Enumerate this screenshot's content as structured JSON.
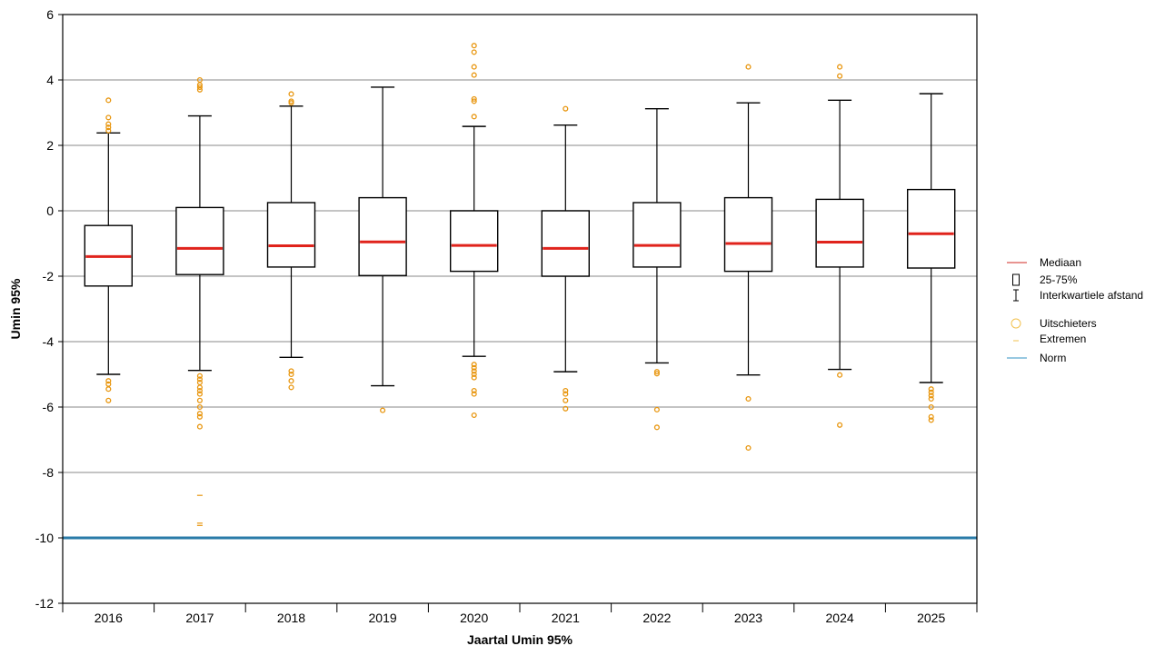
{
  "chart_data": {
    "type": "boxplot",
    "xlabel": "Jaartal Umin 95%",
    "ylabel": "Umin 95%",
    "ylim": [
      -12,
      6
    ],
    "yticks": [
      -12,
      -10,
      -8,
      -6,
      -4,
      -2,
      0,
      2,
      4,
      6
    ],
    "grid": "horizontal",
    "legend_position": "right",
    "categories": [
      "2016",
      "2017",
      "2018",
      "2019",
      "2020",
      "2021",
      "2022",
      "2023",
      "2024",
      "2025"
    ],
    "boxes": [
      {
        "category": "2016",
        "whisker_low": -5.0,
        "q1": -2.3,
        "median": -1.4,
        "q3": -0.45,
        "whisker_high": 2.38,
        "outliers": [
          2.45,
          2.55,
          2.65,
          2.85,
          3.38,
          -5.2,
          -5.3,
          -5.45,
          -5.8
        ],
        "extremes": []
      },
      {
        "category": "2017",
        "whisker_low": -4.88,
        "q1": -1.95,
        "median": -1.15,
        "q3": 0.1,
        "whisker_high": 2.9,
        "outliers": [
          3.7,
          3.78,
          3.85,
          4.0,
          -5.05,
          -5.15,
          -5.25,
          -5.4,
          -5.5,
          -5.6,
          -5.8,
          -6.0,
          -6.2,
          -6.3,
          -6.6
        ],
        "extremes": [
          -8.7,
          -9.55,
          -9.62
        ]
      },
      {
        "category": "2018",
        "whisker_low": -4.48,
        "q1": -1.72,
        "median": -1.07,
        "q3": 0.25,
        "whisker_high": 3.2,
        "outliers": [
          3.3,
          3.35,
          3.57,
          -4.9,
          -5.0,
          -5.2,
          -5.4
        ],
        "extremes": []
      },
      {
        "category": "2019",
        "whisker_low": -5.35,
        "q1": -1.98,
        "median": -0.95,
        "q3": 0.4,
        "whisker_high": 3.78,
        "outliers": [
          -6.1
        ],
        "extremes": []
      },
      {
        "category": "2020",
        "whisker_low": -4.45,
        "q1": -1.85,
        "median": -1.06,
        "q3": 0.0,
        "whisker_high": 2.58,
        "outliers": [
          2.88,
          3.35,
          3.42,
          4.15,
          4.4,
          4.85,
          5.05,
          -4.7,
          -4.8,
          -4.9,
          -5.0,
          -5.1,
          -5.5,
          -5.6,
          -6.25
        ],
        "extremes": []
      },
      {
        "category": "2021",
        "whisker_low": -4.92,
        "q1": -2.0,
        "median": -1.15,
        "q3": 0.0,
        "whisker_high": 2.62,
        "outliers": [
          3.12,
          -5.5,
          -5.6,
          -5.8,
          -6.05
        ],
        "extremes": []
      },
      {
        "category": "2022",
        "whisker_low": -4.65,
        "q1": -1.72,
        "median": -1.06,
        "q3": 0.25,
        "whisker_high": 3.12,
        "outliers": [
          -4.92,
          -4.98,
          -6.08,
          -6.62
        ],
        "extremes": []
      },
      {
        "category": "2023",
        "whisker_low": -5.02,
        "q1": -1.85,
        "median": -1.0,
        "q3": 0.4,
        "whisker_high": 3.3,
        "outliers": [
          4.4,
          -5.75,
          -7.25
        ],
        "extremes": []
      },
      {
        "category": "2024",
        "whisker_low": -4.85,
        "q1": -1.72,
        "median": -0.96,
        "q3": 0.35,
        "whisker_high": 3.38,
        "outliers": [
          4.12,
          4.4,
          -5.02,
          -6.55
        ],
        "extremes": []
      },
      {
        "category": "2025",
        "whisker_low": -5.25,
        "q1": -1.75,
        "median": -0.7,
        "q3": 0.65,
        "whisker_high": 3.58,
        "outliers": [
          -5.45,
          -5.55,
          -5.65,
          -5.75,
          -6.0,
          -6.3,
          -6.4
        ],
        "extremes": []
      }
    ],
    "norm": -10,
    "legend": [
      {
        "label": "Mediaan",
        "kind": "median"
      },
      {
        "label": "25-75%",
        "kind": "box"
      },
      {
        "label": "Interkwartiele afstand",
        "kind": "whisker"
      },
      {
        "label": "Uitschieters",
        "kind": "outlier"
      },
      {
        "label": "Extremen",
        "kind": "extreme"
      },
      {
        "label": "Norm",
        "kind": "norm"
      }
    ],
    "colors": {
      "median": "#e0231c",
      "box": "#000000",
      "outlier": "#e8960f",
      "extreme": "#e8960f",
      "norm": "#2a7ba8",
      "grid": "#b0b0b0",
      "legend_median": "#d9534f",
      "legend_outlier": "#f2c14e",
      "legend_norm": "#5aa6cf"
    }
  }
}
